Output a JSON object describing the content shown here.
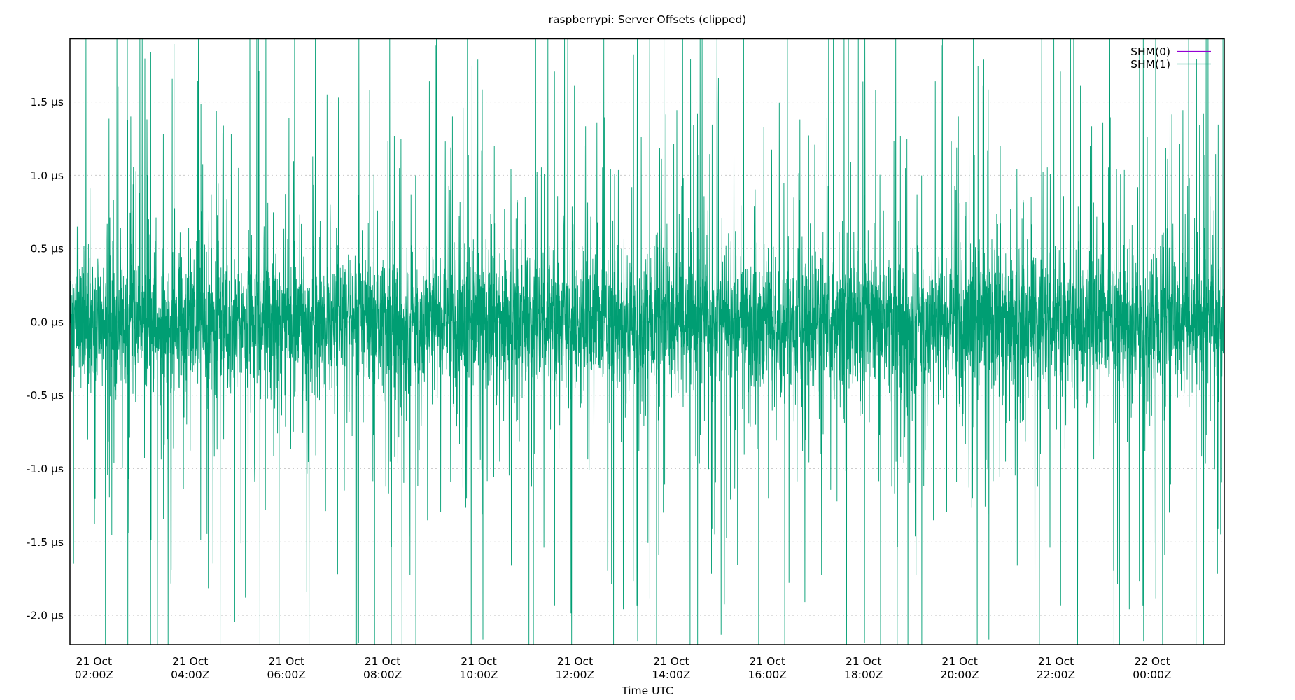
{
  "chart_data": {
    "type": "line",
    "title": "raspberrypi: Server Offsets (clipped)",
    "xlabel": "Time UTC",
    "ylabel": "",
    "x_range": [
      "21 Oct 01:30Z",
      "22 Oct 01:30Z"
    ],
    "ylim": [
      -2.2,
      1.93
    ],
    "y_unit": "µs",
    "y_ticks": [
      "1.5 µs",
      "1.0 µs",
      "0.5 µs",
      "0.0 µs",
      "-0.5 µs",
      "-1.0 µs",
      "-1.5 µs",
      "-2.0 µs"
    ],
    "y_tick_values": [
      1.5,
      1.0,
      0.5,
      0.0,
      -0.5,
      -1.0,
      -1.5,
      -2.0
    ],
    "x_ticks": [
      {
        "line1": "21 Oct",
        "line2": "02:00Z",
        "hours": 2
      },
      {
        "line1": "21 Oct",
        "line2": "04:00Z",
        "hours": 4
      },
      {
        "line1": "21 Oct",
        "line2": "06:00Z",
        "hours": 6
      },
      {
        "line1": "21 Oct",
        "line2": "08:00Z",
        "hours": 8
      },
      {
        "line1": "21 Oct",
        "line2": "10:00Z",
        "hours": 10
      },
      {
        "line1": "21 Oct",
        "line2": "12:00Z",
        "hours": 12
      },
      {
        "line1": "21 Oct",
        "line2": "14:00Z",
        "hours": 14
      },
      {
        "line1": "21 Oct",
        "line2": "16:00Z",
        "hours": 16
      },
      {
        "line1": "21 Oct",
        "line2": "18:00Z",
        "hours": 18
      },
      {
        "line1": "21 Oct",
        "line2": "20:00Z",
        "hours": 20
      },
      {
        "line1": "21 Oct",
        "line2": "22:00Z",
        "hours": 22
      },
      {
        "line1": "22 Oct",
        "line2": "00:00Z",
        "hours": 24
      }
    ],
    "x_hours_range": [
      1.5,
      25.5
    ],
    "grid": true,
    "legend_position": "top-right",
    "series": [
      {
        "name": "SHM(0)",
        "color": "#9400d3",
        "values": []
      },
      {
        "name": "SHM(1)",
        "color": "#009e73",
        "typical_range_us": [
          -0.4,
          0.4
        ],
        "spikes_clipped_at_plot_limits": true
      }
    ]
  }
}
